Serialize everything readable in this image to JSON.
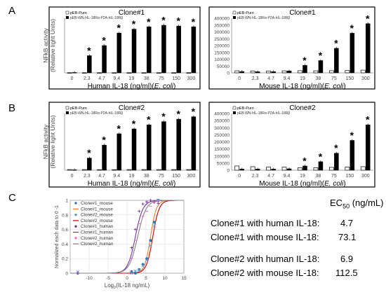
{
  "panel_letters": [
    "A",
    "B",
    "C"
  ],
  "chart_data": [
    {
      "type": "bar",
      "title": "Clone#1",
      "ylabel": "NFkB activity\n(Relative light Units)",
      "xlabel_parts": [
        "Human IL-18 (ng/ml)(",
        "E. coli",
        ")"
      ],
      "categories": [
        "0",
        "2.3",
        "4.7",
        "9.4",
        "19",
        "38",
        "75",
        "150",
        "300"
      ],
      "ylim": [
        0,
        700000
      ],
      "yticks": [
        "0",
        "100000",
        "200000",
        "300000",
        "400000",
        "500000",
        "600000",
        "700000"
      ],
      "yticks_visible": false,
      "legend_position": "top-left",
      "series": [
        {
          "name": "pEB-Puro",
          "color": "#ffffff",
          "values": [
            2000,
            2000,
            2000,
            2000,
            2000,
            2000,
            2000,
            2000,
            2000
          ]
        },
        {
          "name": "pEB-WN-hIL-18Rα-P2A-hIL-18Rβ",
          "color": "#000000",
          "values": [
            5000,
            220000,
            350000,
            510000,
            560000,
            590000,
            610000,
            600000,
            590000
          ]
        }
      ],
      "significance": [
        "",
        "*",
        "*",
        "*",
        "*",
        "*",
        "*",
        "*",
        "*"
      ]
    },
    {
      "type": "bar",
      "title": "Clone#1",
      "xlabel_parts": [
        "Mouse IL-18 (ng/ml)(",
        "E. coli",
        ")"
      ],
      "categories": [
        "0",
        "2.3",
        "4.7",
        "9.4",
        "19",
        "38",
        "75",
        "150",
        "300"
      ],
      "ylim": [
        0,
        400000
      ],
      "yticks": [
        "0",
        "50000",
        "100000",
        "150000",
        "200000",
        "250000",
        "300000",
        "350000",
        "400000"
      ],
      "yticks_visible": true,
      "legend_position": "top-left",
      "series": [
        {
          "name": "pEB-Puro",
          "color": "#ffffff",
          "values": [
            15000,
            14000,
            14000,
            15000,
            16000,
            15000,
            16000,
            17000,
            20000
          ]
        },
        {
          "name": "pEB-WN-hIL-18Rα-P2A-hIL-18Rβ",
          "color": "#000000",
          "values": [
            10000,
            8000,
            9000,
            14000,
            55000,
            90000,
            180000,
            290000,
            360000
          ]
        }
      ],
      "significance": [
        "",
        "",
        "",
        "",
        "*",
        "*",
        "*",
        "*",
        "*"
      ]
    },
    {
      "type": "bar",
      "title": "Clone#2",
      "ylabel": "NFkB activity\n(Relative light Units)",
      "xlabel_parts": [
        "Human IL-18 (ng/ml)(",
        "E. coli",
        ")"
      ],
      "categories": [
        "0",
        "2.3",
        "4.7",
        "9.4",
        "19",
        "38",
        "75",
        "150",
        "300"
      ],
      "ylim": [
        0,
        700000
      ],
      "yticks": [
        "0",
        "100000",
        "200000",
        "300000",
        "400000",
        "500000",
        "600000",
        "700000"
      ],
      "yticks_visible": false,
      "legend_position": "top-left",
      "series": [
        {
          "name": "pEB-Puro",
          "color": "#ffffff",
          "values": [
            8000,
            8000,
            7000,
            7000,
            8000,
            8000,
            8000,
            8000,
            8000
          ]
        },
        {
          "name": "pEB-WN-hIL-18Rα-P2A-hIL-18Rβ",
          "color": "#000000",
          "values": [
            5000,
            150000,
            310000,
            450000,
            510000,
            560000,
            600000,
            630000,
            660000
          ]
        }
      ],
      "significance": [
        "",
        "*",
        "*",
        "*",
        "*",
        "*",
        "*",
        "*",
        "*"
      ]
    },
    {
      "type": "bar",
      "title": "Clone#2",
      "xlabel_parts": [
        "Mouse IL-18 (ng/ml)(",
        "E. coli",
        ")"
      ],
      "categories": [
        "0",
        "2.3",
        "4.7",
        "9.4",
        "19",
        "38",
        "75",
        "150",
        "300"
      ],
      "ylim": [
        0,
        400000
      ],
      "yticks": [
        "0",
        "50000",
        "100000",
        "150000",
        "200000",
        "250000",
        "300000",
        "350000",
        "400000"
      ],
      "yticks_visible": true,
      "legend_position": "top-left",
      "series": [
        {
          "name": "pEB-Puro",
          "color": "#ffffff",
          "values": [
            30000,
            25000,
            22000,
            22000,
            18000,
            18000,
            20000,
            22000,
            25000
          ]
        },
        {
          "name": "pEB-WN-hIL-18Rα-P2A-hIL-18Rβ",
          "color": "#000000",
          "values": [
            8000,
            8000,
            8000,
            10000,
            30000,
            60000,
            120000,
            210000,
            320000
          ]
        }
      ],
      "significance": [
        "",
        "",
        "",
        "",
        "*",
        "*",
        "*",
        "*",
        "*"
      ]
    },
    {
      "type": "scatter",
      "ylabel": "Normalized each data to 0 -1",
      "xlabel_parts": [
        "Log",
        "2",
        "(IL-18 ng/mL)"
      ],
      "xlim": [
        -15,
        15
      ],
      "ylim": [
        0,
        1
      ],
      "xticks": [
        "-10",
        "-5",
        "0",
        "5",
        "10",
        "15"
      ],
      "yticks": [
        "0",
        "0.2",
        "0.4",
        "0.6",
        "0.8",
        "1"
      ],
      "grid": true,
      "legend_position": "top-left",
      "series": [
        {
          "name": "Clone#1_mouse",
          "kind": "points",
          "marker": "circle",
          "color": "#2e75b6",
          "x": [
            -13,
            1.2,
            2.2,
            3.2,
            4.2,
            5.2,
            6.2,
            7.2,
            8.2
          ],
          "y": [
            0.0,
            0.02,
            0.0,
            0.05,
            0.12,
            0.2,
            0.45,
            0.7,
            1.0
          ]
        },
        {
          "name": "Clone#1_mouse",
          "kind": "line",
          "color": "#ed7d31",
          "ec50": 6.2,
          "hill": 1.3
        },
        {
          "name": "Clone#2_mouse",
          "kind": "points",
          "marker": "cross",
          "color": "#5b9bd5",
          "x": [
            -13,
            1.2,
            2.2,
            3.2,
            4.2,
            5.2,
            6.2,
            7.2,
            8.2
          ],
          "y": [
            0.02,
            0.0,
            0.03,
            0.04,
            0.1,
            0.18,
            0.38,
            0.65,
            1.0
          ]
        },
        {
          "name": "Clone#2_mouse",
          "kind": "line",
          "color": "#c00000",
          "ec50": 6.8,
          "hill": 1.2
        },
        {
          "name": "Clone#1_human",
          "kind": "points",
          "marker": "plus",
          "color": "#7030a0",
          "x": [
            -13,
            1.2,
            2.2,
            3.2,
            4.2,
            5.2,
            6.2,
            7.2,
            8.2
          ],
          "y": [
            0.0,
            0.35,
            0.6,
            0.85,
            0.95,
            0.98,
            1.0,
            0.97,
            0.96
          ]
        },
        {
          "name": "Clone#1_human",
          "kind": "line",
          "color": "#7030a0",
          "ec50": 2.2,
          "hill": 1.0
        },
        {
          "name": "Clone#2_human",
          "kind": "points",
          "marker": "dash",
          "color": "#ff66cc",
          "x": [
            -13,
            1.2,
            2.2,
            3.2,
            4.2,
            5.2,
            6.2,
            7.2,
            8.2
          ],
          "y": [
            0.0,
            0.2,
            0.45,
            0.68,
            0.78,
            0.85,
            0.92,
            0.97,
            1.0
          ]
        },
        {
          "name": "Clone#2_human",
          "kind": "line",
          "color": "#808080",
          "ec50": 2.8,
          "hill": 0.9
        }
      ]
    }
  ],
  "ec50_table": {
    "header_parts": [
      "EC",
      "50",
      " (ng/mL)"
    ],
    "rows": [
      {
        "label": "Clone#1 with human IL-18:",
        "value": "4.7"
      },
      {
        "label": "Clone#1 with mouse IL-18:",
        "value": "73.1"
      },
      {
        "label": "Clone#2 with human IL-18:",
        "value": "6.9"
      },
      {
        "label": "Clone#2 with mouse IL-18:",
        "value": "112.5"
      }
    ]
  }
}
